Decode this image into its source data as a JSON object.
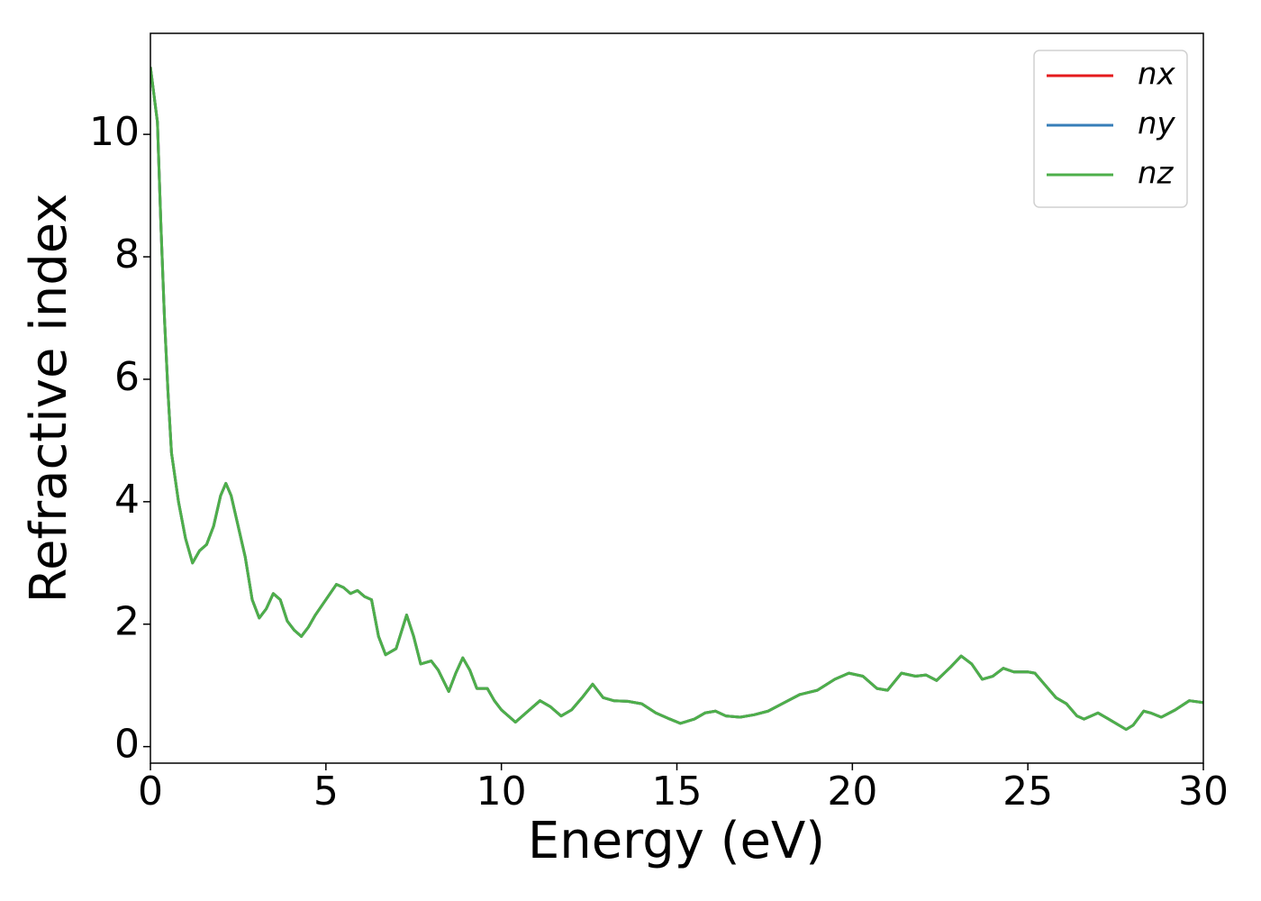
{
  "chart_data": {
    "type": "line",
    "xlabel": "Energy (eV)",
    "ylabel": "Refractive index",
    "x": [
      0,
      0.2,
      0.3,
      0.4,
      0.5,
      0.6,
      0.8,
      1.0,
      1.2,
      1.4,
      1.6,
      1.8,
      2.0,
      2.15,
      2.3,
      2.5,
      2.7,
      2.9,
      3.1,
      3.3,
      3.5,
      3.7,
      3.9,
      4.1,
      4.3,
      4.5,
      4.7,
      5.0,
      5.3,
      5.5,
      5.7,
      5.9,
      6.1,
      6.3,
      6.5,
      6.7,
      7.0,
      7.3,
      7.5,
      7.7,
      8.0,
      8.2,
      8.5,
      8.7,
      8.9,
      9.1,
      9.3,
      9.6,
      9.8,
      10.0,
      10.4,
      10.7,
      11.1,
      11.4,
      11.7,
      12.0,
      12.3,
      12.6,
      12.9,
      13.2,
      13.6,
      14.0,
      14.4,
      14.8,
      15.1,
      15.5,
      15.8,
      16.1,
      16.4,
      16.8,
      17.2,
      17.6,
      18.0,
      18.5,
      19.0,
      19.5,
      19.9,
      20.3,
      20.7,
      21.0,
      21.4,
      21.8,
      22.1,
      22.4,
      22.8,
      23.1,
      23.4,
      23.7,
      24.0,
      24.3,
      24.6,
      25.0,
      25.2,
      25.5,
      25.8,
      26.1,
      26.4,
      26.6,
      27.0,
      27.3,
      27.8,
      28.0,
      28.3,
      28.5,
      28.8,
      29.2,
      29.6,
      30.0
    ],
    "series": [
      {
        "name": "nx",
        "color": "#e41a1c",
        "values": [
          11.1,
          10.2,
          8.5,
          7.0,
          5.8,
          4.8,
          4.0,
          3.4,
          3.0,
          3.2,
          3.3,
          3.6,
          4.1,
          4.3,
          4.1,
          3.6,
          3.1,
          2.4,
          2.1,
          2.25,
          2.5,
          2.4,
          2.05,
          1.9,
          1.8,
          1.95,
          2.15,
          2.4,
          2.65,
          2.6,
          2.5,
          2.55,
          2.45,
          2.4,
          1.8,
          1.5,
          1.6,
          2.15,
          1.8,
          1.35,
          1.4,
          1.25,
          0.9,
          1.2,
          1.45,
          1.25,
          0.95,
          0.95,
          0.75,
          0.6,
          0.4,
          0.55,
          0.75,
          0.65,
          0.5,
          0.6,
          0.8,
          1.02,
          0.8,
          0.75,
          0.74,
          0.7,
          0.55,
          0.45,
          0.38,
          0.45,
          0.55,
          0.58,
          0.5,
          0.48,
          0.52,
          0.58,
          0.7,
          0.85,
          0.92,
          1.1,
          1.2,
          1.15,
          0.95,
          0.92,
          1.2,
          1.15,
          1.17,
          1.08,
          1.3,
          1.48,
          1.35,
          1.1,
          1.15,
          1.28,
          1.22,
          1.22,
          1.2,
          1.0,
          0.8,
          0.7,
          0.5,
          0.45,
          0.55,
          0.45,
          0.28,
          0.35,
          0.58,
          0.55,
          0.48,
          0.6,
          0.75,
          0.72
        ]
      },
      {
        "name": "ny",
        "color": "#377eb8",
        "values": [
          11.1,
          10.2,
          8.5,
          7.0,
          5.8,
          4.8,
          4.0,
          3.4,
          3.0,
          3.2,
          3.3,
          3.6,
          4.1,
          4.3,
          4.1,
          3.6,
          3.1,
          2.4,
          2.1,
          2.25,
          2.5,
          2.4,
          2.05,
          1.9,
          1.8,
          1.95,
          2.15,
          2.4,
          2.65,
          2.6,
          2.5,
          2.55,
          2.45,
          2.4,
          1.8,
          1.5,
          1.6,
          2.15,
          1.8,
          1.35,
          1.4,
          1.25,
          0.9,
          1.2,
          1.45,
          1.25,
          0.95,
          0.95,
          0.75,
          0.6,
          0.4,
          0.55,
          0.75,
          0.65,
          0.5,
          0.6,
          0.8,
          1.02,
          0.8,
          0.75,
          0.74,
          0.7,
          0.55,
          0.45,
          0.38,
          0.45,
          0.55,
          0.58,
          0.5,
          0.48,
          0.52,
          0.58,
          0.7,
          0.85,
          0.92,
          1.1,
          1.2,
          1.15,
          0.95,
          0.92,
          1.2,
          1.15,
          1.17,
          1.08,
          1.3,
          1.48,
          1.35,
          1.1,
          1.15,
          1.28,
          1.22,
          1.22,
          1.2,
          1.0,
          0.8,
          0.7,
          0.5,
          0.45,
          0.55,
          0.45,
          0.28,
          0.35,
          0.58,
          0.55,
          0.48,
          0.6,
          0.75,
          0.72
        ]
      },
      {
        "name": "nz",
        "color": "#4daf4a",
        "values": [
          11.1,
          10.2,
          8.5,
          7.0,
          5.8,
          4.8,
          4.0,
          3.4,
          3.0,
          3.2,
          3.3,
          3.6,
          4.1,
          4.3,
          4.1,
          3.6,
          3.1,
          2.4,
          2.1,
          2.25,
          2.5,
          2.4,
          2.05,
          1.9,
          1.8,
          1.95,
          2.15,
          2.4,
          2.65,
          2.6,
          2.5,
          2.55,
          2.45,
          2.4,
          1.8,
          1.5,
          1.6,
          2.15,
          1.8,
          1.35,
          1.4,
          1.25,
          0.9,
          1.2,
          1.45,
          1.25,
          0.95,
          0.95,
          0.75,
          0.6,
          0.4,
          0.55,
          0.75,
          0.65,
          0.5,
          0.6,
          0.8,
          1.02,
          0.8,
          0.75,
          0.74,
          0.7,
          0.55,
          0.45,
          0.38,
          0.45,
          0.55,
          0.58,
          0.5,
          0.48,
          0.52,
          0.58,
          0.7,
          0.85,
          0.92,
          1.1,
          1.2,
          1.15,
          0.95,
          0.92,
          1.2,
          1.15,
          1.17,
          1.08,
          1.3,
          1.48,
          1.35,
          1.1,
          1.15,
          1.28,
          1.22,
          1.22,
          1.2,
          1.0,
          0.8,
          0.7,
          0.5,
          0.45,
          0.55,
          0.45,
          0.28,
          0.35,
          0.58,
          0.55,
          0.48,
          0.6,
          0.75,
          0.72
        ]
      }
    ],
    "xlim": [
      0,
      30
    ],
    "xticks": [
      0,
      5,
      10,
      15,
      20,
      25,
      30
    ],
    "ylim": [
      -0.27,
      11.65
    ],
    "yticks": [
      0,
      2,
      4,
      6,
      8,
      10
    ],
    "grid": false,
    "legend": "upper right"
  }
}
